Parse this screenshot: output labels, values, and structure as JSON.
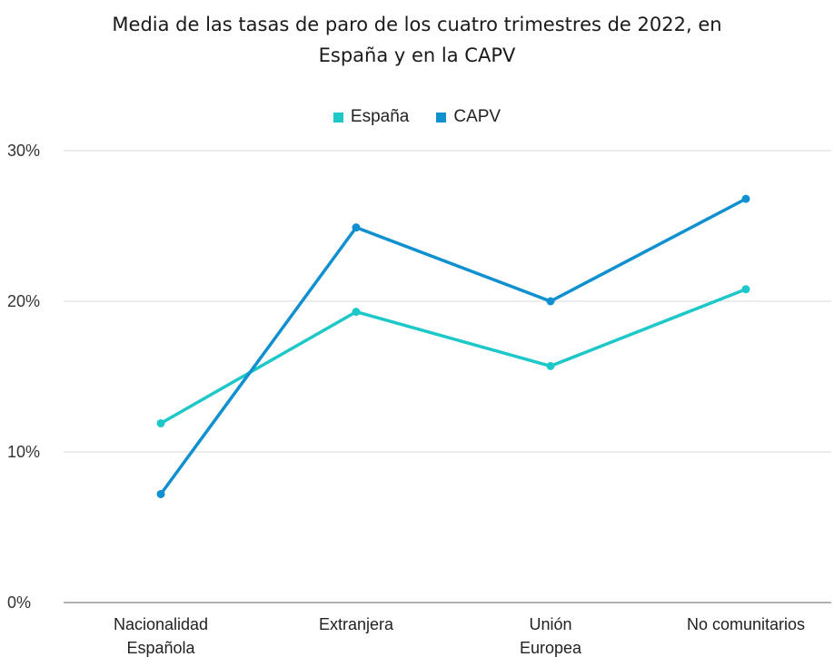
{
  "chart_data": {
    "type": "line",
    "title_line1": "Media de las tasas de paro de los cuatro trimestres de 2022, en",
    "title_line2": "España y en la CAPV",
    "categories": [
      [
        "Nacionalidad",
        "Española"
      ],
      [
        "Extranjera"
      ],
      [
        "Unión",
        "Europea"
      ],
      [
        "No comunitarios"
      ]
    ],
    "series": [
      {
        "name": "España",
        "color": "#1fc8c8",
        "values": [
          11.9,
          19.3,
          15.7,
          20.8
        ]
      },
      {
        "name": "CAPV",
        "color": "#1190d0",
        "values": [
          7.2,
          24.9,
          20.0,
          26.8
        ]
      }
    ],
    "ylim": [
      0,
      30
    ],
    "yticks": [
      0,
      10,
      20,
      30
    ],
    "ytick_labels": [
      "0%",
      "10%",
      "20%",
      "30%"
    ],
    "grid": true,
    "legend_position": "top"
  }
}
